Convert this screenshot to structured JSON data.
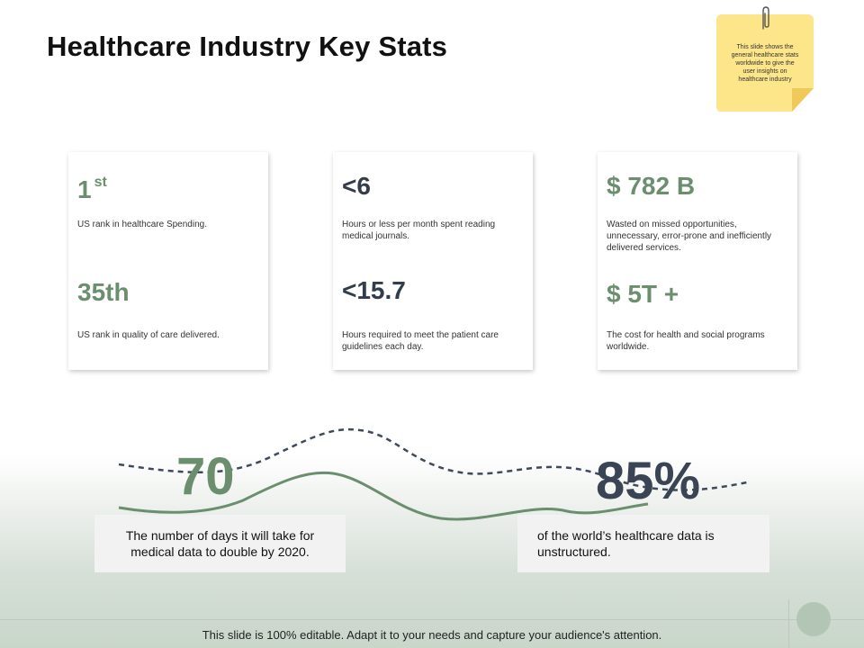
{
  "title": "Healthcare Industry Key Stats",
  "note": {
    "text": "This slide shows the general healthcare stats worldwide to give the user insights on healthcare industry"
  },
  "cards": [
    {
      "stats": [
        {
          "value": "1",
          "suffix": "st",
          "label": "US rank in healthcare Spending."
        },
        {
          "value": "35th",
          "label": "US rank in quality of care delivered."
        }
      ]
    },
    {
      "stats": [
        {
          "value": "<6",
          "label": "Hours or less per month spent reading medical journals."
        },
        {
          "value": "<15.7",
          "label": "Hours required to meet the patient care guidelines each day."
        }
      ]
    },
    {
      "stats": [
        {
          "value": "$ 782 B",
          "label": "Wasted on missed opportunities, unnecessary, error-prone and inefficiently delivered services."
        },
        {
          "value": "$ 5T +",
          "label": "The cost for health and social programs worldwide."
        }
      ]
    }
  ],
  "highlights": [
    {
      "value": "70",
      "label": "The number of days it will take for medical data to double by 2020."
    },
    {
      "value": "85%",
      "label": "of the world’s healthcare data is unstructured."
    }
  ],
  "footer": "This slide is 100% editable. Adapt it to your needs and capture your audience's attention.",
  "colors": {
    "accent_green": "#6b8f6e",
    "accent_dark": "#333d4a",
    "note_yellow": "#fde58a"
  }
}
